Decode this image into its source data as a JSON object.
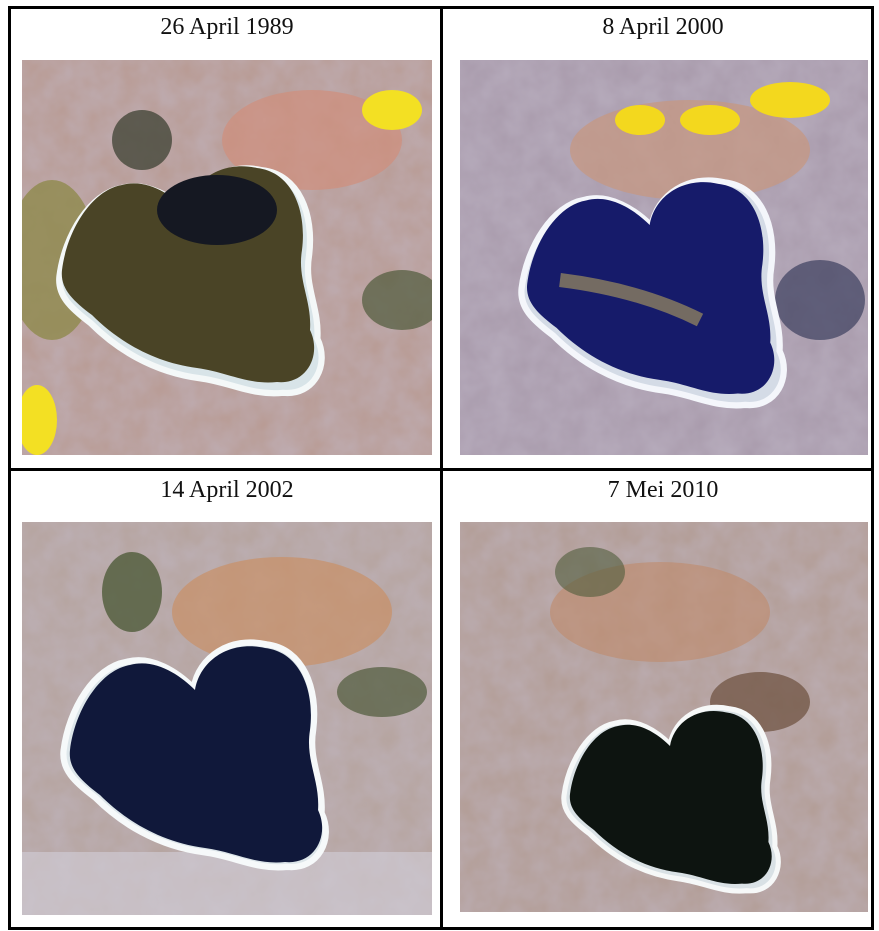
{
  "panels": [
    {
      "caption": "26 April 1989"
    },
    {
      "caption": "8 April 2000"
    },
    {
      "caption": "14 April 2002"
    },
    {
      "caption": "7 Mei 2010"
    }
  ]
}
